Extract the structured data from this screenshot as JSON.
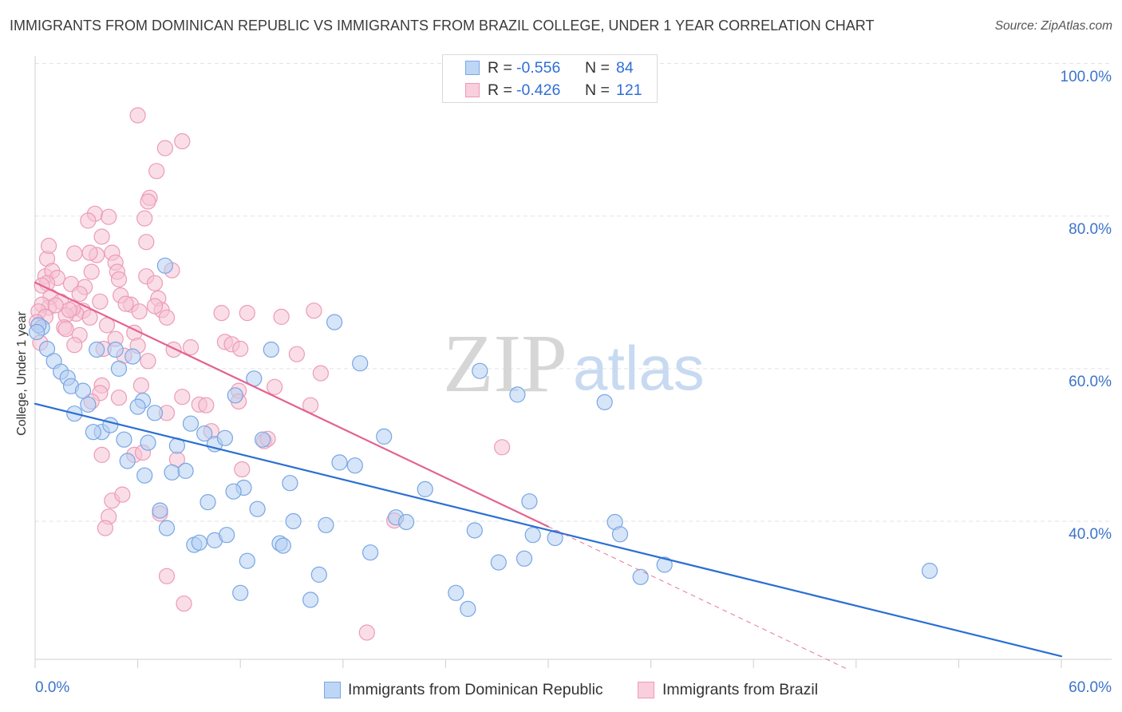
{
  "source": "Source: ZipAtlas.com",
  "watermark": {
    "zip": "ZIP",
    "atlas": "atlas"
  },
  "legend": {
    "r_label": "R =",
    "n_label": "N ="
  },
  "chart_data": {
    "type": "scatter",
    "title": "IMMIGRANTS FROM DOMINICAN REPUBLIC VS IMMIGRANTS FROM BRAZIL COLLEGE, UNDER 1 YEAR CORRELATION CHART",
    "xlabel": "",
    "ylabel": "College, Under 1 year",
    "xlim": [
      0,
      60
    ],
    "ylim": [
      21.9,
      101.0
    ],
    "x_ticks": [
      0,
      6,
      12,
      18,
      24,
      30,
      36,
      42,
      48,
      54,
      60
    ],
    "x_tick_labels": [
      "0.0%",
      "60.0%"
    ],
    "y_ticks": [
      100,
      80,
      60,
      40
    ],
    "y_tick_labels": [
      "100.0%",
      "80.0%",
      "60.0%",
      "40.0%"
    ],
    "grid": "horizontal dashed",
    "legend_position": "top-center",
    "series": [
      {
        "name": "Immigrants from Dominican Republic",
        "r": "-0.556",
        "n": "84",
        "color": "#78a6e4",
        "fill": "#b4cff3",
        "trend_color": "#2a6fd4",
        "trend": {
          "x": [
            0,
            60
          ],
          "y": [
            55.4,
            22.3
          ]
        },
        "points": [
          [
            0.4,
            65.4
          ],
          [
            0.2,
            65.7
          ],
          [
            0.1,
            64.8
          ],
          [
            0.7,
            62.6
          ],
          [
            1.1,
            61.0
          ],
          [
            1.5,
            59.6
          ],
          [
            1.9,
            58.8
          ],
          [
            2.1,
            57.7
          ],
          [
            2.8,
            57.1
          ],
          [
            2.3,
            54.1
          ],
          [
            3.1,
            55.3
          ],
          [
            3.9,
            51.7
          ],
          [
            3.4,
            51.7
          ],
          [
            4.4,
            52.6
          ],
          [
            3.6,
            62.5
          ],
          [
            4.7,
            62.5
          ],
          [
            4.9,
            60.0
          ],
          [
            5.7,
            61.6
          ],
          [
            6.3,
            55.8
          ],
          [
            6.0,
            55.0
          ],
          [
            7.0,
            54.2
          ],
          [
            5.2,
            50.7
          ],
          [
            5.4,
            47.9
          ],
          [
            6.4,
            46.0
          ],
          [
            6.6,
            50.3
          ],
          [
            7.6,
            73.5
          ],
          [
            9.1,
            52.8
          ],
          [
            8.3,
            49.9
          ],
          [
            8.0,
            46.4
          ],
          [
            8.8,
            46.6
          ],
          [
            10.5,
            50.1
          ],
          [
            9.9,
            51.5
          ],
          [
            11.1,
            50.9
          ],
          [
            11.7,
            56.5
          ],
          [
            12.8,
            58.7
          ],
          [
            13.8,
            62.5
          ],
          [
            13.3,
            50.7
          ],
          [
            12.2,
            44.4
          ],
          [
            11.6,
            43.9
          ],
          [
            13.0,
            41.6
          ],
          [
            10.1,
            42.5
          ],
          [
            7.3,
            41.4
          ],
          [
            7.7,
            39.1
          ],
          [
            9.3,
            36.9
          ],
          [
            9.6,
            37.2
          ],
          [
            10.5,
            37.5
          ],
          [
            11.2,
            38.2
          ],
          [
            12.4,
            34.8
          ],
          [
            12.0,
            30.6
          ],
          [
            14.3,
            37.1
          ],
          [
            14.5,
            36.8
          ],
          [
            15.1,
            40.0
          ],
          [
            14.9,
            45.0
          ],
          [
            17.0,
            39.5
          ],
          [
            16.6,
            33.0
          ],
          [
            16.1,
            29.7
          ],
          [
            17.5,
            66.1
          ],
          [
            17.8,
            47.7
          ],
          [
            18.7,
            47.3
          ],
          [
            19.0,
            60.7
          ],
          [
            19.6,
            35.9
          ],
          [
            20.4,
            51.1
          ],
          [
            21.1,
            40.5
          ],
          [
            21.7,
            39.9
          ],
          [
            22.8,
            44.2
          ],
          [
            24.6,
            30.6
          ],
          [
            25.3,
            28.5
          ],
          [
            25.7,
            38.8
          ],
          [
            26.0,
            59.7
          ],
          [
            27.1,
            34.6
          ],
          [
            28.2,
            56.6
          ],
          [
            28.6,
            35.1
          ],
          [
            28.9,
            42.6
          ],
          [
            29.1,
            38.2
          ],
          [
            30.4,
            37.8
          ],
          [
            33.3,
            55.6
          ],
          [
            33.9,
            39.9
          ],
          [
            34.2,
            38.3
          ],
          [
            35.4,
            32.7
          ],
          [
            36.8,
            34.3
          ],
          [
            52.3,
            33.5
          ]
        ]
      },
      {
        "name": "Immigrants from Brazil",
        "r": "-0.426",
        "n": "121",
        "color": "#ec9bb7",
        "fill": "#f6c3d4",
        "trend_color": "#e4628f",
        "trend": {
          "x": [
            0,
            30.0
          ],
          "y": [
            71.3,
            39.3
          ]
        },
        "trend_extension": {
          "x": [
            30.0,
            47.6
          ],
          "y": [
            39.3,
            20.5
          ]
        },
        "points": [
          [
            6.0,
            93.2
          ],
          [
            8.6,
            89.8
          ],
          [
            7.6,
            88.9
          ],
          [
            7.1,
            85.9
          ],
          [
            6.7,
            82.4
          ],
          [
            6.6,
            81.9
          ],
          [
            6.4,
            79.7
          ],
          [
            3.5,
            80.3
          ],
          [
            3.1,
            79.4
          ],
          [
            4.3,
            79.9
          ],
          [
            3.9,
            77.3
          ],
          [
            6.5,
            76.6
          ],
          [
            0.7,
            74.4
          ],
          [
            2.3,
            75.1
          ],
          [
            3.6,
            74.9
          ],
          [
            4.5,
            75.2
          ],
          [
            4.7,
            73.9
          ],
          [
            4.8,
            72.7
          ],
          [
            0.6,
            72.1
          ],
          [
            1.0,
            72.8
          ],
          [
            1.3,
            71.9
          ],
          [
            0.7,
            71.2
          ],
          [
            0.4,
            70.9
          ],
          [
            0.9,
            69.4
          ],
          [
            1.5,
            68.8
          ],
          [
            2.1,
            71.1
          ],
          [
            2.9,
            70.7
          ],
          [
            3.3,
            72.7
          ],
          [
            4.9,
            71.7
          ],
          [
            6.5,
            72.1
          ],
          [
            8.0,
            72.9
          ],
          [
            7.2,
            69.2
          ],
          [
            5.6,
            68.4
          ],
          [
            5.0,
            69.6
          ],
          [
            3.8,
            68.8
          ],
          [
            2.8,
            67.6
          ],
          [
            2.4,
            67.2
          ],
          [
            2.2,
            67.9
          ],
          [
            3.2,
            66.7
          ],
          [
            1.8,
            67.0
          ],
          [
            0.8,
            68.0
          ],
          [
            0.4,
            68.4
          ],
          [
            0.2,
            67.5
          ],
          [
            4.2,
            65.7
          ],
          [
            1.7,
            65.4
          ],
          [
            2.6,
            64.4
          ],
          [
            2.3,
            63.1
          ],
          [
            1.8,
            65.2
          ],
          [
            0.6,
            66.8
          ],
          [
            6.1,
            67.5
          ],
          [
            5.8,
            64.7
          ],
          [
            6.0,
            63.0
          ],
          [
            4.7,
            63.9
          ],
          [
            7.4,
            67.7
          ],
          [
            7.7,
            66.7
          ],
          [
            7.0,
            71.2
          ],
          [
            5.3,
            68.5
          ],
          [
            9.1,
            62.8
          ],
          [
            8.1,
            62.5
          ],
          [
            5.2,
            61.7
          ],
          [
            6.6,
            61.0
          ],
          [
            3.9,
            57.8
          ],
          [
            3.8,
            56.8
          ],
          [
            4.9,
            56.2
          ],
          [
            3.3,
            55.7
          ],
          [
            6.2,
            57.8
          ],
          [
            5.8,
            48.7
          ],
          [
            6.3,
            49.0
          ],
          [
            7.7,
            54.2
          ],
          [
            8.6,
            56.3
          ],
          [
            8.3,
            48.1
          ],
          [
            9.6,
            55.3
          ],
          [
            10.0,
            55.2
          ],
          [
            10.3,
            51.8
          ],
          [
            10.9,
            67.3
          ],
          [
            11.1,
            63.5
          ],
          [
            11.5,
            63.2
          ],
          [
            12.0,
            62.6
          ],
          [
            12.4,
            67.3
          ],
          [
            11.9,
            57.1
          ],
          [
            11.9,
            55.7
          ],
          [
            12.1,
            46.8
          ],
          [
            14.0,
            57.6
          ],
          [
            13.4,
            50.5
          ],
          [
            13.6,
            50.8
          ],
          [
            15.3,
            61.9
          ],
          [
            16.3,
            67.6
          ],
          [
            16.7,
            59.4
          ],
          [
            16.1,
            55.2
          ],
          [
            7.7,
            32.8
          ],
          [
            8.7,
            29.2
          ],
          [
            3.9,
            48.7
          ],
          [
            4.5,
            42.7
          ],
          [
            4.3,
            40.6
          ],
          [
            4.1,
            39.1
          ],
          [
            5.1,
            43.5
          ],
          [
            7.3,
            41.0
          ],
          [
            27.3,
            49.7
          ],
          [
            21.0,
            40.1
          ],
          [
            19.4,
            25.4
          ],
          [
            14.4,
            66.8
          ],
          [
            7.0,
            68.2
          ],
          [
            4.0,
            62.6
          ],
          [
            0.8,
            76.1
          ],
          [
            3.2,
            75.2
          ],
          [
            2.6,
            69.8
          ],
          [
            2.0,
            67.7
          ],
          [
            0.1,
            66.1
          ],
          [
            0.3,
            63.4
          ],
          [
            1.2,
            68.3
          ]
        ]
      }
    ]
  }
}
